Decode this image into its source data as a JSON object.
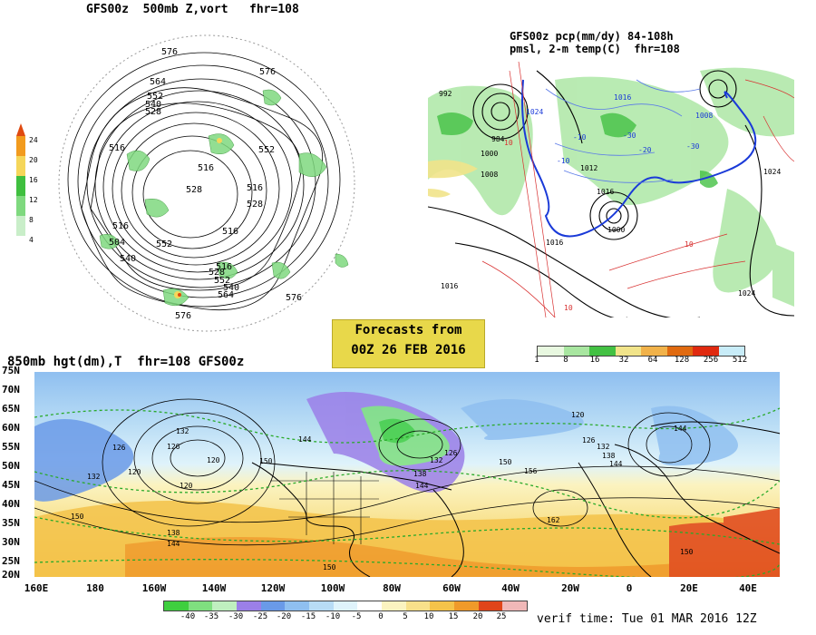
{
  "panel_500mb": {
    "title": "GFS00z  500mb Z,vort   fhr=108",
    "contour_labels": [
      "576",
      "576",
      "564",
      "552",
      "540",
      "528",
      "516",
      "516",
      "528",
      "516",
      "552",
      "516",
      "504",
      "516",
      "528",
      "540",
      "552",
      "564",
      "576",
      "576",
      "528",
      "552",
      "540",
      "516"
    ],
    "colorbar": {
      "ticks": [
        "24",
        "20",
        "16",
        "12",
        "8",
        "4"
      ],
      "colors": [
        "#e04a10",
        "#f29b1e",
        "#f5d65a",
        "#3fbf3f",
        "#7fd97f",
        "#c9eec9"
      ]
    }
  },
  "panel_pcp": {
    "title_line1": "GFS00z pcp(mm/dy) 84-108h",
    "title_line2": "pmsl, 2-m temp(C)  fhr=108",
    "labels": [
      "992",
      "1024",
      "984",
      "1000",
      "1008",
      "1016",
      "10",
      "1012",
      "1016",
      "1008",
      "1000",
      "1016",
      "1024",
      "10",
      "1016",
      "-10",
      "-30",
      "-20",
      "-10",
      "-30",
      "1024",
      "10"
    ],
    "colorbar": {
      "ticks": [
        "1",
        "8",
        "16",
        "32",
        "64",
        "128",
        "256",
        "512"
      ],
      "colors": [
        "#e8f8e0",
        "#a8e6a0",
        "#43c143",
        "#f1e48a",
        "#f1b24a",
        "#e06a10",
        "#e02a10",
        "#c8ecf8"
      ]
    }
  },
  "banner": {
    "line1": "Forecasts from",
    "line2": "00Z 26 FEB 2016"
  },
  "panel_850mb": {
    "title": "850mb hgt(dm),T  fhr=108 GFS00z",
    "lat_labels": [
      "75N",
      "70N",
      "65N",
      "60N",
      "55N",
      "50N",
      "45N",
      "40N",
      "35N",
      "30N",
      "25N",
      "20N"
    ],
    "lon_labels": [
      "160E",
      "180",
      "160W",
      "140W",
      "120W",
      "100W",
      "80W",
      "60W",
      "40W",
      "20W",
      "0",
      "20E",
      "40E"
    ],
    "contour_labels": [
      "132",
      "126",
      "120",
      "132",
      "120",
      "150",
      "126",
      "120",
      "138",
      "144",
      "150",
      "144",
      "138",
      "132",
      "126",
      "144",
      "150",
      "156",
      "162",
      "120",
      "126",
      "132",
      "138",
      "144",
      "150",
      "144",
      "150"
    ],
    "colorbar": {
      "ticks": [
        "-40",
        "-35",
        "-30",
        "-25",
        "-20",
        "-15",
        "-10",
        "-5",
        "0",
        "5",
        "10",
        "15",
        "20",
        "25"
      ],
      "colors": [
        "#3fcf3f",
        "#7fdf7f",
        "#bfefbf",
        "#9b7fe8",
        "#6a9ae8",
        "#8fbff0",
        "#b8dcf5",
        "#dff3fb",
        "#ffffff",
        "#fbf3c0",
        "#f8e08a",
        "#f4c34a",
        "#f09a2a",
        "#e0451a",
        "#f0b8b8"
      ]
    }
  },
  "footer": {
    "verif": "verif time: Tue 01 MAR 2016 12Z"
  }
}
